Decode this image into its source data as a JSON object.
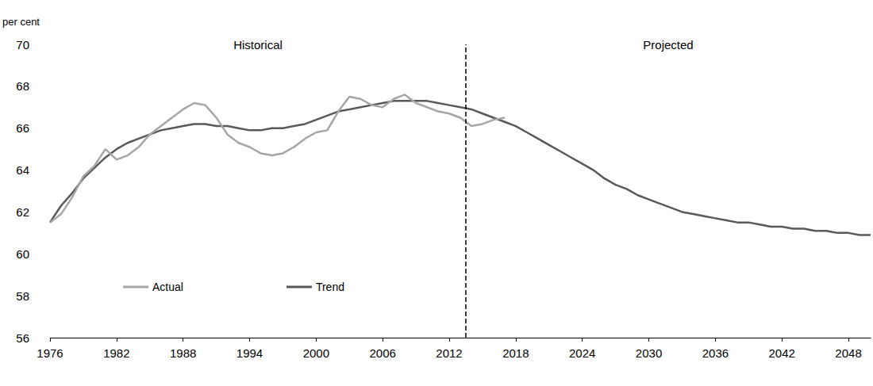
{
  "chart_data": {
    "type": "line",
    "y_label": "per cent",
    "annotations": [
      {
        "text": "Historical"
      },
      {
        "text": "Projected"
      }
    ],
    "divider": 2013.5,
    "x": [
      1976,
      1977,
      1978,
      1979,
      1980,
      1981,
      1982,
      1983,
      1984,
      1985,
      1986,
      1987,
      1988,
      1989,
      1990,
      1991,
      1992,
      1993,
      1994,
      1995,
      1996,
      1997,
      1998,
      1999,
      2000,
      2001,
      2002,
      2003,
      2004,
      2005,
      2006,
      2007,
      2008,
      2009,
      2010,
      2011,
      2012,
      2013,
      2014,
      2015,
      2016,
      2017,
      2018,
      2019,
      2020,
      2021,
      2022,
      2023,
      2024,
      2025,
      2026,
      2027,
      2028,
      2029,
      2030,
      2031,
      2032,
      2033,
      2034,
      2035,
      2036,
      2037,
      2038,
      2039,
      2040,
      2041,
      2042,
      2043,
      2044,
      2045,
      2046,
      2047,
      2048,
      2049,
      2050
    ],
    "series": [
      {
        "name": "Actual",
        "color": "#a6a6a6",
        "line_style": "solid",
        "values": [
          61.5,
          61.9,
          62.7,
          63.7,
          64.2,
          65.0,
          64.5,
          64.7,
          65.1,
          65.7,
          66.1,
          66.5,
          66.9,
          67.2,
          67.1,
          66.5,
          65.7,
          65.3,
          65.1,
          64.8,
          64.7,
          64.8,
          65.1,
          65.5,
          65.8,
          65.9,
          66.8,
          67.5,
          67.4,
          67.1,
          67.0,
          67.4,
          67.6,
          67.2,
          67.0,
          66.8,
          66.7,
          66.5,
          66.1,
          66.2,
          66.4,
          66.5,
          null,
          null,
          null,
          null,
          null,
          null,
          null,
          null,
          null,
          null,
          null,
          null,
          null,
          null,
          null,
          null,
          null,
          null,
          null,
          null,
          null,
          null,
          null,
          null,
          null,
          null,
          null,
          null,
          null,
          null,
          null,
          null,
          null
        ]
      },
      {
        "name": "Trend",
        "color": "#595959",
        "line_style": "solid",
        "values": [
          61.5,
          62.3,
          62.9,
          63.6,
          64.1,
          64.6,
          65.0,
          65.3,
          65.5,
          65.7,
          65.9,
          66.0,
          66.1,
          66.2,
          66.2,
          66.1,
          66.1,
          66.0,
          65.9,
          65.9,
          66.0,
          66.0,
          66.1,
          66.2,
          66.4,
          66.6,
          66.8,
          66.9,
          67.0,
          67.1,
          67.2,
          67.3,
          67.3,
          67.3,
          67.3,
          67.2,
          67.1,
          67.0,
          66.9,
          66.7,
          66.5,
          66.3,
          66.1,
          65.8,
          65.5,
          65.2,
          64.9,
          64.6,
          64.3,
          64.0,
          63.6,
          63.3,
          63.1,
          62.8,
          62.6,
          62.4,
          62.2,
          62.0,
          61.9,
          61.8,
          61.7,
          61.6,
          61.5,
          61.5,
          61.4,
          61.3,
          61.3,
          61.2,
          61.2,
          61.1,
          61.1,
          61.0,
          61.0,
          60.9,
          60.9
        ]
      }
    ],
    "xlim": [
      1976,
      2050
    ],
    "xticks": [
      1976,
      1982,
      1988,
      1994,
      2000,
      2006,
      2012,
      2018,
      2024,
      2030,
      2036,
      2042,
      2048
    ],
    "ylim": [
      56,
      70
    ],
    "yticks": [
      56,
      58,
      60,
      62,
      64,
      66,
      68,
      70
    ],
    "grid": false,
    "legend": "lower left"
  }
}
